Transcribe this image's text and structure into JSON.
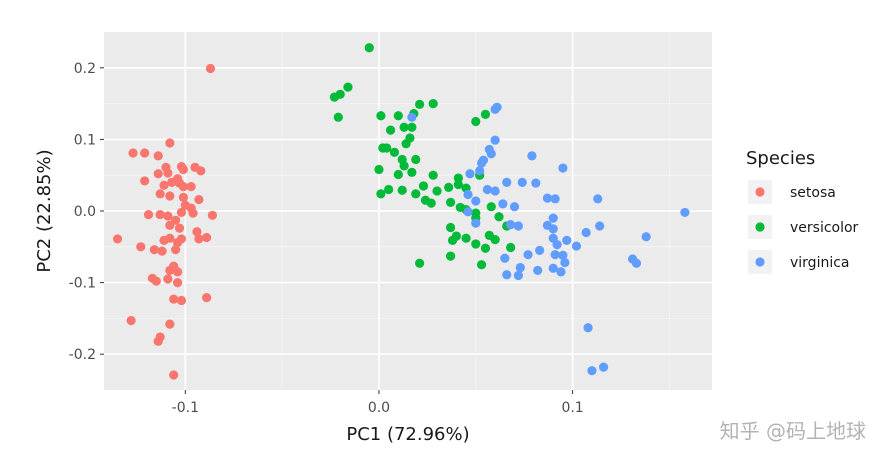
{
  "chart_data": {
    "type": "scatter",
    "xlabel": "PC1 (72.96%)",
    "ylabel": "PC2 (22.85%)",
    "xlim": [
      -0.142,
      0.172
    ],
    "ylim": [
      -0.25,
      0.25
    ],
    "x_ticks": [
      {
        "value": -0.1,
        "label": "-0.1"
      },
      {
        "value": 0.0,
        "label": "0.0"
      },
      {
        "value": 0.1,
        "label": "0.1"
      }
    ],
    "y_ticks": [
      {
        "value": 0.2,
        "label": "0.2"
      },
      {
        "value": 0.1,
        "label": "0.1"
      },
      {
        "value": 0.0,
        "label": "0.0"
      },
      {
        "value": -0.1,
        "label": "-0.1"
      },
      {
        "value": -0.2,
        "label": "-0.2"
      }
    ],
    "grid": true,
    "legend": {
      "title": "Species",
      "position": "right"
    },
    "series": [
      {
        "name": "setosa",
        "color": "#F8766D",
        "points": [
          [
            -0.087,
            0.199
          ],
          [
            -0.108,
            0.095
          ],
          [
            -0.121,
            0.081
          ],
          [
            -0.127,
            0.081
          ],
          [
            -0.114,
            0.077
          ],
          [
            -0.102,
            0.062
          ],
          [
            -0.11,
            0.061
          ],
          [
            -0.095,
            0.061
          ],
          [
            -0.092,
            0.056
          ],
          [
            -0.101,
            0.058
          ],
          [
            -0.109,
            0.053
          ],
          [
            -0.114,
            0.052
          ],
          [
            -0.121,
            0.042
          ],
          [
            -0.104,
            0.045
          ],
          [
            -0.107,
            0.04
          ],
          [
            -0.103,
            0.039
          ],
          [
            -0.111,
            0.036
          ],
          [
            -0.101,
            0.034
          ],
          [
            -0.097,
            0.034
          ],
          [
            -0.113,
            0.024
          ],
          [
            -0.108,
            0.021
          ],
          [
            -0.101,
            0.019
          ],
          [
            -0.093,
            0.016
          ],
          [
            -0.1,
            0.008
          ],
          [
            -0.097,
            0.004
          ],
          [
            -0.119,
            -0.005
          ],
          [
            -0.113,
            -0.005
          ],
          [
            -0.109,
            -0.007
          ],
          [
            -0.102,
            -0.002
          ],
          [
            -0.096,
            -0.003
          ],
          [
            -0.086,
            -0.006
          ],
          [
            -0.105,
            -0.013
          ],
          [
            -0.108,
            -0.02
          ],
          [
            -0.103,
            -0.024
          ],
          [
            -0.094,
            -0.029
          ],
          [
            -0.135,
            -0.039
          ],
          [
            -0.108,
            -0.038
          ],
          [
            -0.111,
            -0.041
          ],
          [
            -0.102,
            -0.039
          ],
          [
            -0.089,
            -0.037
          ],
          [
            -0.093,
            -0.039
          ],
          [
            -0.104,
            -0.044
          ],
          [
            -0.123,
            -0.05
          ],
          [
            -0.116,
            -0.054
          ],
          [
            -0.105,
            -0.054
          ],
          [
            -0.112,
            -0.056
          ],
          [
            -0.106,
            -0.077
          ],
          [
            -0.108,
            -0.083
          ],
          [
            -0.104,
            -0.085
          ],
          [
            -0.117,
            -0.094
          ],
          [
            -0.115,
            -0.098
          ],
          [
            -0.109,
            -0.095
          ],
          [
            -0.104,
            -0.1
          ],
          [
            -0.089,
            -0.121
          ],
          [
            -0.106,
            -0.123
          ],
          [
            -0.102,
            -0.125
          ],
          [
            -0.128,
            -0.153
          ],
          [
            -0.108,
            -0.158
          ],
          [
            -0.113,
            -0.176
          ],
          [
            -0.114,
            -0.182
          ],
          [
            -0.106,
            -0.229
          ]
        ]
      },
      {
        "name": "versicolor",
        "color": "#00BA38",
        "points": [
          [
            -0.005,
            0.228
          ],
          [
            -0.016,
            0.173
          ],
          [
            -0.02,
            0.163
          ],
          [
            -0.023,
            0.159
          ],
          [
            -0.021,
            0.131
          ],
          [
            0.001,
            0.133
          ],
          [
            0.01,
            0.133
          ],
          [
            0.021,
            0.149
          ],
          [
            0.028,
            0.15
          ],
          [
            0.018,
            0.136
          ],
          [
            0.013,
            0.117
          ],
          [
            0.006,
            0.113
          ],
          [
            0.017,
            0.117
          ],
          [
            0.05,
            0.125
          ],
          [
            0.055,
            0.135
          ],
          [
            0.016,
            0.102
          ],
          [
            0.014,
            0.094
          ],
          [
            0.004,
            0.088
          ],
          [
            0.002,
            0.088
          ],
          [
            0.008,
            0.082
          ],
          [
            0.012,
            0.072
          ],
          [
            0.019,
            0.072
          ],
          [
            0.013,
            0.063
          ],
          [
            0.0,
            0.058
          ],
          [
            0.01,
            0.051
          ],
          [
            0.017,
            0.054
          ],
          [
            0.028,
            0.05
          ],
          [
            0.041,
            0.046
          ],
          [
            0.023,
            0.035
          ],
          [
            0.036,
            0.033
          ],
          [
            0.005,
            0.03
          ],
          [
            0.012,
            0.029
          ],
          [
            0.001,
            0.024
          ],
          [
            0.019,
            0.024
          ],
          [
            0.03,
            0.028
          ],
          [
            0.045,
            0.032
          ],
          [
            0.052,
            0.05
          ],
          [
            0.041,
            0.037
          ],
          [
            0.024,
            0.015
          ],
          [
            0.027,
            0.011
          ],
          [
            0.037,
            0.012
          ],
          [
            0.042,
            0.005
          ],
          [
            0.045,
            0.002
          ],
          [
            0.05,
            -0.003
          ],
          [
            0.058,
            0.006
          ],
          [
            0.062,
            -0.008
          ],
          [
            0.066,
            -0.021
          ],
          [
            0.05,
            -0.01
          ],
          [
            0.037,
            -0.023
          ],
          [
            0.04,
            -0.035
          ],
          [
            0.045,
            -0.038
          ],
          [
            0.038,
            -0.041
          ],
          [
            0.057,
            -0.034
          ],
          [
            0.06,
            -0.04
          ],
          [
            0.05,
            -0.046
          ],
          [
            0.068,
            -0.051
          ],
          [
            0.055,
            -0.052
          ],
          [
            0.037,
            -0.063
          ],
          [
            0.053,
            -0.075
          ],
          [
            0.021,
            -0.073
          ]
        ]
      },
      {
        "name": "virginica",
        "color": "#619CFF",
        "points": [
          [
            0.061,
            0.145
          ],
          [
            0.06,
            0.142
          ],
          [
            0.017,
            0.131
          ],
          [
            0.06,
            0.099
          ],
          [
            0.057,
            0.086
          ],
          [
            0.058,
            0.08
          ],
          [
            0.053,
            0.067
          ],
          [
            0.054,
            0.071
          ],
          [
            0.047,
            0.052
          ],
          [
            0.052,
            0.056
          ],
          [
            0.079,
            0.077
          ],
          [
            0.095,
            0.06
          ],
          [
            0.066,
            0.04
          ],
          [
            0.074,
            0.04
          ],
          [
            0.081,
            0.039
          ],
          [
            0.056,
            0.03
          ],
          [
            0.06,
            0.028
          ],
          [
            0.087,
            0.018
          ],
          [
            0.091,
            0.017
          ],
          [
            0.113,
            0.017
          ],
          [
            0.158,
            -0.002
          ],
          [
            0.046,
            0.023
          ],
          [
            0.05,
            0.014
          ],
          [
            0.064,
            0.01
          ],
          [
            0.07,
            0.006
          ],
          [
            0.046,
            -0.001
          ],
          [
            0.05,
            -0.017
          ],
          [
            0.068,
            -0.019
          ],
          [
            0.072,
            -0.021
          ],
          [
            0.087,
            -0.02
          ],
          [
            0.09,
            -0.01
          ],
          [
            0.114,
            -0.021
          ],
          [
            0.09,
            -0.025
          ],
          [
            0.107,
            -0.03
          ],
          [
            0.138,
            -0.036
          ],
          [
            0.09,
            -0.038
          ],
          [
            0.097,
            -0.041
          ],
          [
            0.092,
            -0.047
          ],
          [
            0.102,
            -0.049
          ],
          [
            0.083,
            -0.055
          ],
          [
            0.077,
            -0.061
          ],
          [
            0.091,
            -0.061
          ],
          [
            0.095,
            -0.062
          ],
          [
            0.096,
            -0.072
          ],
          [
            0.065,
            -0.066
          ],
          [
            0.073,
            -0.079
          ],
          [
            0.082,
            -0.083
          ],
          [
            0.09,
            -0.08
          ],
          [
            0.094,
            -0.085
          ],
          [
            0.072,
            -0.09
          ],
          [
            0.066,
            -0.089
          ],
          [
            0.131,
            -0.067
          ],
          [
            0.133,
            -0.073
          ],
          [
            0.108,
            -0.163
          ],
          [
            0.116,
            -0.218
          ],
          [
            0.11,
            -0.223
          ]
        ]
      }
    ]
  },
  "watermark": "知乎 @码上地球"
}
